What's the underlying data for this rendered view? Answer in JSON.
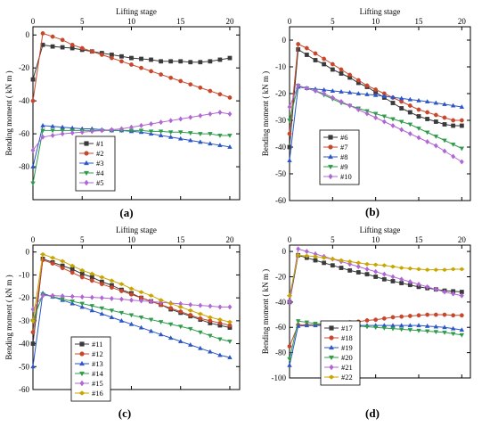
{
  "chart_data": [
    {
      "panel_label": "(a)",
      "type": "line",
      "title": "",
      "xlabel": "Lifting stage",
      "ylabel": "Bending moment ( kN m )",
      "xlim": [
        0,
        21
      ],
      "ylim": [
        -100,
        5
      ],
      "xticks": [
        0,
        5,
        10,
        15,
        20
      ],
      "yticks": [
        0,
        -20,
        -40,
        -60,
        -80
      ],
      "x_axis_position": "top",
      "legend_position": "bottom-left",
      "grid": false,
      "x": [
        0,
        1,
        2,
        3,
        4,
        5,
        6,
        7,
        8,
        9,
        10,
        11,
        12,
        13,
        14,
        15,
        16,
        17,
        18,
        19,
        20
      ],
      "series": [
        {
          "name": "#1",
          "color": "#3a3a3a",
          "marker": "square",
          "values": [
            -27,
            -6,
            -7,
            -7.5,
            -8,
            -9,
            -10,
            -11,
            -12,
            -13,
            -14,
            -14.5,
            -15,
            -16,
            -16,
            -16,
            -16.5,
            -16.5,
            -16,
            -15,
            -14
          ]
        },
        {
          "name": "#2",
          "color": "#c8472c",
          "marker": "circle",
          "values": [
            -40,
            1,
            -1,
            -3,
            -6,
            -8,
            -10,
            -12,
            -14,
            -16,
            -18,
            -20,
            -22,
            -24,
            -26,
            -28,
            -30,
            -32,
            -34,
            -36,
            -38
          ]
        },
        {
          "name": "#3",
          "color": "#2a56c8",
          "marker": "triangle-up",
          "values": [
            -80,
            -55,
            -55.5,
            -56,
            -56.5,
            -57,
            -57,
            -57.5,
            -58,
            -58,
            -58.5,
            -59,
            -60,
            -61,
            -62,
            -63,
            -64,
            -65,
            -66,
            -67,
            -68
          ]
        },
        {
          "name": "#4",
          "color": "#2e9b4a",
          "marker": "triangle-down",
          "values": [
            -90,
            -58,
            -58,
            -58,
            -58,
            -58,
            -58,
            -58,
            -58,
            -58,
            -58,
            -58,
            -58.5,
            -58.5,
            -59,
            -59,
            -59.5,
            -60,
            -60,
            -61,
            -61
          ]
        },
        {
          "name": "#5",
          "color": "#b066d4",
          "marker": "diamond",
          "values": [
            -70,
            -62,
            -61,
            -60,
            -59.5,
            -59,
            -58.5,
            -58,
            -57.5,
            -57,
            -56,
            -55,
            -54,
            -53,
            -52,
            -51,
            -50,
            -49,
            -48,
            -47,
            -48
          ]
        }
      ]
    },
    {
      "panel_label": "(b)",
      "type": "line",
      "title": "",
      "xlabel": "Lifting stage",
      "ylabel": "Bending moment ( kN m )",
      "xlim": [
        0,
        21
      ],
      "ylim": [
        -60,
        5
      ],
      "xticks": [
        0,
        5,
        10,
        15,
        20
      ],
      "yticks": [
        0,
        -10,
        -20,
        -30,
        -40,
        -50,
        -60
      ],
      "x_axis_position": "top",
      "legend_position": "bottom-left",
      "grid": false,
      "x": [
        0,
        1,
        2,
        3,
        4,
        5,
        6,
        7,
        8,
        9,
        10,
        11,
        12,
        13,
        14,
        15,
        16,
        17,
        18,
        19,
        20
      ],
      "series": [
        {
          "name": "#6",
          "color": "#3a3a3a",
          "marker": "square",
          "values": [
            -40,
            -3.5,
            -5.5,
            -7.5,
            -9,
            -11,
            -12.5,
            -14,
            -16,
            -17.5,
            -19.5,
            -21.5,
            -23.5,
            -25.5,
            -27,
            -28.5,
            -29.5,
            -30.5,
            -31.5,
            -32,
            -32
          ]
        },
        {
          "name": "#7",
          "color": "#c8472c",
          "marker": "circle",
          "values": [
            -35,
            -1.5,
            -3,
            -5,
            -7,
            -9,
            -11,
            -13,
            -15,
            -17,
            -18.5,
            -20,
            -21.5,
            -23,
            -24.5,
            -26,
            -27,
            -28,
            -29,
            -30,
            -30
          ]
        },
        {
          "name": "#8",
          "color": "#2a56c8",
          "marker": "triangle-up",
          "values": [
            -45,
            -17.5,
            -18,
            -18.3,
            -18.6,
            -19,
            -19.3,
            -19.6,
            -20,
            -20.3,
            -20.6,
            -21,
            -21.4,
            -21.8,
            -22.2,
            -22.6,
            -23,
            -23.5,
            -24,
            -24.5,
            -25
          ]
        },
        {
          "name": "#9",
          "color": "#2e9b4a",
          "marker": "triangle-down",
          "values": [
            -30,
            -17,
            -18,
            -19,
            -20.5,
            -22,
            -23.5,
            -24.5,
            -25.5,
            -26.5,
            -27.5,
            -28.5,
            -29.5,
            -30.5,
            -31.5,
            -33,
            -34.5,
            -36,
            -37.5,
            -39,
            -40.5
          ]
        },
        {
          "name": "#10",
          "color": "#b066d4",
          "marker": "diamond",
          "values": [
            -25,
            -17,
            -18,
            -19,
            -20,
            -21.5,
            -23,
            -24.5,
            -26,
            -27.5,
            -29,
            -30.5,
            -32,
            -33.5,
            -35,
            -36.5,
            -38,
            -39.5,
            -41.5,
            -43.5,
            -45.5
          ]
        }
      ]
    },
    {
      "panel_label": "(c)",
      "type": "line",
      "title": "",
      "xlabel": "Lifting stage",
      "ylabel": "Bending moment ( kN m )",
      "xlim": [
        0,
        21
      ],
      "ylim": [
        -60,
        3
      ],
      "xticks": [
        0,
        5,
        10,
        15,
        20
      ],
      "yticks": [
        0,
        -10,
        -20,
        -30,
        -40,
        -50,
        -60
      ],
      "x_axis_position": "top",
      "legend_position": "bottom-left",
      "grid": false,
      "x": [
        0,
        1,
        2,
        3,
        4,
        5,
        6,
        7,
        8,
        9,
        10,
        11,
        12,
        13,
        14,
        15,
        16,
        17,
        18,
        19,
        20
      ],
      "series": [
        {
          "name": "#11",
          "color": "#3a3a3a",
          "marker": "square",
          "values": [
            -40,
            -3,
            -4.5,
            -6,
            -7.5,
            -9.5,
            -11,
            -13,
            -14.5,
            -16.5,
            -18,
            -20,
            -21.5,
            -23,
            -25,
            -26.5,
            -28,
            -29.5,
            -31,
            -32,
            -33
          ]
        },
        {
          "name": "#12",
          "color": "#c8472c",
          "marker": "circle",
          "values": [
            -35,
            -3.5,
            -5,
            -7,
            -9,
            -11,
            -12.5,
            -14,
            -15.5,
            -17,
            -18.5,
            -20,
            -21.5,
            -23,
            -24.5,
            -26,
            -27.5,
            -29,
            -30,
            -31,
            -32
          ]
        },
        {
          "name": "#13",
          "color": "#2a56c8",
          "marker": "triangle-up",
          "values": [
            -50,
            -18,
            -19.5,
            -21,
            -22.5,
            -24,
            -25.5,
            -27,
            -28.5,
            -30,
            -31.5,
            -33,
            -34.5,
            -36,
            -37.5,
            -39,
            -40.5,
            -42,
            -43.5,
            -45,
            -46
          ]
        },
        {
          "name": "#14",
          "color": "#2e9b4a",
          "marker": "triangle-down",
          "values": [
            -30,
            -18.5,
            -19.5,
            -20.5,
            -21.5,
            -22.5,
            -23.5,
            -24.5,
            -25.5,
            -26.5,
            -27.5,
            -28.5,
            -29.5,
            -30.5,
            -31.5,
            -32.5,
            -33.5,
            -35,
            -36.5,
            -38,
            -39
          ]
        },
        {
          "name": "#15",
          "color": "#b066d4",
          "marker": "diamond",
          "values": [
            -25,
            -19,
            -19,
            -19.2,
            -19.4,
            -19.6,
            -19.8,
            -20,
            -20.3,
            -20.6,
            -21,
            -21.3,
            -21.6,
            -22,
            -22.3,
            -22.6,
            -23,
            -23.3,
            -23.6,
            -24,
            -24
          ]
        },
        {
          "name": "#16",
          "color": "#c8a600",
          "marker": "diamond-left",
          "values": [
            -30,
            -1,
            -2.5,
            -4,
            -6,
            -8,
            -9.5,
            -11,
            -12.5,
            -14,
            -16,
            -17.5,
            -19,
            -21,
            -22.5,
            -24,
            -25.5,
            -27,
            -28.5,
            -29.5,
            -30.5
          ]
        }
      ]
    },
    {
      "panel_label": "(d)",
      "type": "line",
      "title": "",
      "xlabel": "Lifting stage",
      "ylabel": "Bending moment ( kN m )",
      "xlim": [
        0,
        21
      ],
      "ylim": [
        -100,
        5
      ],
      "xticks": [
        0,
        5,
        10,
        15,
        20
      ],
      "yticks": [
        0,
        -20,
        -40,
        -60,
        -80,
        -100
      ],
      "x_axis_position": "top",
      "legend_position": "bottom-left",
      "grid": false,
      "x": [
        0,
        1,
        2,
        3,
        4,
        5,
        6,
        7,
        8,
        9,
        10,
        11,
        12,
        13,
        14,
        15,
        16,
        17,
        18,
        19,
        20
      ],
      "series": [
        {
          "name": "#17",
          "color": "#3a3a3a",
          "marker": "square",
          "values": [
            -40,
            -3,
            -5,
            -7,
            -9,
            -11,
            -13,
            -15,
            -16.5,
            -18,
            -20,
            -22,
            -23.5,
            -25,
            -26.5,
            -28,
            -29,
            -30,
            -31,
            -31.5,
            -32
          ]
        },
        {
          "name": "#18",
          "color": "#c8472c",
          "marker": "circle",
          "values": [
            -75,
            -58,
            -58,
            -58,
            -57.5,
            -57,
            -56.5,
            -56,
            -55.5,
            -54.5,
            -54,
            -53,
            -52,
            -51.5,
            -51,
            -50.5,
            -50,
            -50,
            -50,
            -50.5,
            -50.5
          ]
        },
        {
          "name": "#19",
          "color": "#2a56c8",
          "marker": "triangle-up",
          "values": [
            -90,
            -59,
            -58.5,
            -58.5,
            -58.5,
            -58.5,
            -58.5,
            -58.5,
            -58.5,
            -58.5,
            -58.5,
            -58.5,
            -58.5,
            -58.5,
            -58.5,
            -58.5,
            -59,
            -59.5,
            -60,
            -61,
            -62
          ]
        },
        {
          "name": "#20",
          "color": "#2e9b4a",
          "marker": "triangle-down",
          "values": [
            -85,
            -55,
            -56,
            -57,
            -57.5,
            -58,
            -58,
            -58.5,
            -59,
            -59.5,
            -60,
            -60.5,
            -61,
            -61.5,
            -62,
            -62.5,
            -63,
            -63.5,
            -64,
            -65,
            -66
          ]
        },
        {
          "name": "#21",
          "color": "#b066d4",
          "marker": "diamond",
          "values": [
            -40,
            2,
            0,
            -2,
            -4,
            -6,
            -8,
            -10,
            -12,
            -14,
            -16,
            -18,
            -20,
            -22,
            -24,
            -26,
            -28,
            -30,
            -32,
            -33.5,
            -35
          ]
        },
        {
          "name": "#22",
          "color": "#c8a600",
          "marker": "diamond-left",
          "values": [
            -35,
            -3,
            -3.5,
            -4,
            -5,
            -6,
            -7,
            -8,
            -9,
            -10,
            -10.5,
            -11,
            -12,
            -13,
            -13.5,
            -14,
            -14.5,
            -14.5,
            -14.5,
            -14,
            -14
          ]
        }
      ]
    }
  ]
}
